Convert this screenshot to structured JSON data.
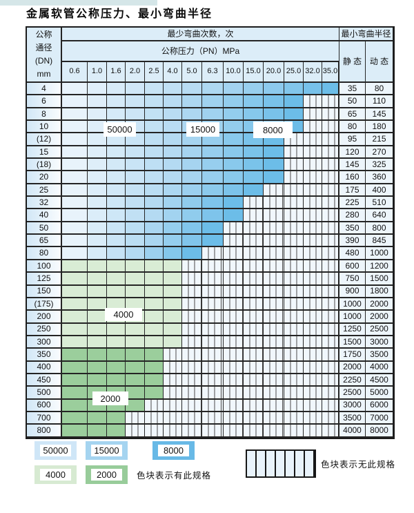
{
  "page": {
    "top_bar_color": "#d5e6e8"
  },
  "title": "金属软管公称压力、最小弯曲半径",
  "table": {
    "dn_header_lines": [
      "公称",
      "通径",
      "(DN)",
      "mm"
    ],
    "bend_cycles_header": "最少弯曲次数，次",
    "pressure_header": "公称压力（PN）MPa",
    "radius_header": "最小弯曲半径",
    "static_header": "静 态",
    "dynamic_header": "动 态",
    "pressure_ticks": [
      "0.6",
      "1.0",
      "1.6",
      "2.0",
      "2.5",
      "4.0",
      "5.0",
      "6.3",
      "10.0",
      "15.0",
      "20.0",
      "25.0",
      "32.0",
      "35.0"
    ]
  },
  "overlay_labels": [
    {
      "id": "label-50000",
      "text": "50000"
    },
    {
      "id": "label-15000",
      "text": "15000"
    },
    {
      "id": "label-8000",
      "text": "8000"
    },
    {
      "id": "label-4000",
      "text": "4000"
    },
    {
      "id": "label-2000",
      "text": "2000"
    }
  ],
  "legend": {
    "items": [
      {
        "label": "50000",
        "color": "#cfe6f7"
      },
      {
        "label": "15000",
        "color": "#a5d4f0"
      },
      {
        "label": "8000",
        "color": "#68b9e6"
      },
      {
        "label": "4000",
        "color": "#d7ead2"
      },
      {
        "label": "2000",
        "color": "#98cc9a"
      }
    ],
    "has_spec_text": "色块表示有此规格",
    "no_spec_text": "色块表示无此规格"
  },
  "colors": {
    "blue_gradient_stops": [
      "#e8f3fb",
      "#b4daf2",
      "#6cbde8"
    ],
    "green_light": "#d9ecd5",
    "green_mid": "#9bce9c",
    "no_spec_fill": "#f1f7fc",
    "header_fill": "#dcedf8"
  },
  "chart_data": {
    "type": "heatmap",
    "title": "金属软管公称压力、最小弯曲半径",
    "x_label": "公称压力（PN）MPa",
    "x_pressures_MPa": [
      0.6,
      1.0,
      1.6,
      2.0,
      2.5,
      4.0,
      5.0,
      6.3,
      10.0,
      15.0,
      20.0,
      25.0,
      32.0,
      35.0
    ],
    "cell_color_meaning": "最少弯曲次数，次 (minimum bend cycles); striped = 无此规格 (no such specification)",
    "cycle_legend": [
      50000,
      15000,
      8000,
      4000,
      2000
    ],
    "radius_columns": [
      "静 态",
      "动 态"
    ],
    "rows": [
      {
        "dn": "4",
        "available_up_to_MPa": 35.0,
        "colored_cols": 14,
        "palette": "blue",
        "static_radius": 35,
        "dynamic_radius": 80
      },
      {
        "dn": "6",
        "available_up_to_MPa": 25.0,
        "colored_cols": 12,
        "palette": "blue",
        "static_radius": 50,
        "dynamic_radius": 110
      },
      {
        "dn": "8",
        "available_up_to_MPa": 25.0,
        "colored_cols": 12,
        "palette": "blue",
        "static_radius": 65,
        "dynamic_radius": 145
      },
      {
        "dn": "10",
        "available_up_to_MPa": 25.0,
        "colored_cols": 12,
        "palette": "blue",
        "static_radius": 80,
        "dynamic_radius": 180
      },
      {
        "dn": "(12)",
        "available_up_to_MPa": 20.0,
        "colored_cols": 11,
        "palette": "blue",
        "static_radius": 95,
        "dynamic_radius": 215
      },
      {
        "dn": "15",
        "available_up_to_MPa": 20.0,
        "colored_cols": 11,
        "palette": "blue",
        "static_radius": 120,
        "dynamic_radius": 270
      },
      {
        "dn": "(18)",
        "available_up_to_MPa": 20.0,
        "colored_cols": 11,
        "palette": "blue",
        "static_radius": 145,
        "dynamic_radius": 325
      },
      {
        "dn": "20",
        "available_up_to_MPa": 20.0,
        "colored_cols": 11,
        "palette": "blue",
        "static_radius": 160,
        "dynamic_radius": 360
      },
      {
        "dn": "25",
        "available_up_to_MPa": 15.0,
        "colored_cols": 10,
        "palette": "blue",
        "static_radius": 175,
        "dynamic_radius": 400
      },
      {
        "dn": "32",
        "available_up_to_MPa": 10.0,
        "colored_cols": 9,
        "palette": "blue",
        "static_radius": 225,
        "dynamic_radius": 510
      },
      {
        "dn": "40",
        "available_up_to_MPa": 10.0,
        "colored_cols": 9,
        "palette": "blue",
        "static_radius": 280,
        "dynamic_radius": 640
      },
      {
        "dn": "50",
        "available_up_to_MPa": 6.3,
        "colored_cols": 8,
        "palette": "blue",
        "static_radius": 350,
        "dynamic_radius": 800
      },
      {
        "dn": "65",
        "available_up_to_MPa": 6.3,
        "colored_cols": 8,
        "palette": "blue",
        "static_radius": 390,
        "dynamic_radius": 845
      },
      {
        "dn": "80",
        "available_up_to_MPa": 5.0,
        "colored_cols": 7,
        "palette": "blue",
        "static_radius": 480,
        "dynamic_radius": 1000
      },
      {
        "dn": "100",
        "available_up_to_MPa": 4.0,
        "colored_cols": 6,
        "palette": "green_light",
        "static_radius": 600,
        "dynamic_radius": 1200
      },
      {
        "dn": "125",
        "available_up_to_MPa": 4.0,
        "colored_cols": 6,
        "palette": "green_light",
        "static_radius": 750,
        "dynamic_radius": 1500
      },
      {
        "dn": "150",
        "available_up_to_MPa": 4.0,
        "colored_cols": 6,
        "palette": "green_light",
        "static_radius": 900,
        "dynamic_radius": 1800
      },
      {
        "dn": "(175)",
        "available_up_to_MPa": 4.0,
        "colored_cols": 6,
        "palette": "green_light",
        "static_radius": 1000,
        "dynamic_radius": 2000
      },
      {
        "dn": "200",
        "available_up_to_MPa": 4.0,
        "colored_cols": 6,
        "palette": "green_light",
        "static_radius": 1000,
        "dynamic_radius": 2000
      },
      {
        "dn": "250",
        "available_up_to_MPa": 4.0,
        "colored_cols": 6,
        "palette": "green_light",
        "static_radius": 1250,
        "dynamic_radius": 2500
      },
      {
        "dn": "300",
        "available_up_to_MPa": 4.0,
        "colored_cols": 6,
        "palette": "green_light",
        "static_radius": 1500,
        "dynamic_radius": 3000
      },
      {
        "dn": "350",
        "available_up_to_MPa": 2.5,
        "colored_cols": 5,
        "palette": "green_mid",
        "static_radius": 1750,
        "dynamic_radius": 3500
      },
      {
        "dn": "400",
        "available_up_to_MPa": 2.5,
        "colored_cols": 5,
        "palette": "green_mid",
        "static_radius": 2000,
        "dynamic_radius": 4000
      },
      {
        "dn": "450",
        "available_up_to_MPa": 2.5,
        "colored_cols": 5,
        "palette": "green_mid",
        "static_radius": 2250,
        "dynamic_radius": 4500
      },
      {
        "dn": "500",
        "available_up_to_MPa": 2.5,
        "colored_cols": 5,
        "palette": "green_mid",
        "static_radius": 2500,
        "dynamic_radius": 5000
      },
      {
        "dn": "600",
        "available_up_to_MPa": 2.0,
        "colored_cols": 4,
        "palette": "green_mid",
        "static_radius": 3000,
        "dynamic_radius": 6000
      },
      {
        "dn": "700",
        "available_up_to_MPa": 1.6,
        "colored_cols": 3,
        "palette": "green_mid",
        "static_radius": 3500,
        "dynamic_radius": 7000
      },
      {
        "dn": "800",
        "available_up_to_MPa": 1.6,
        "colored_cols": 3,
        "palette": "green_mid",
        "static_radius": 4000,
        "dynamic_radius": 8000
      }
    ]
  }
}
